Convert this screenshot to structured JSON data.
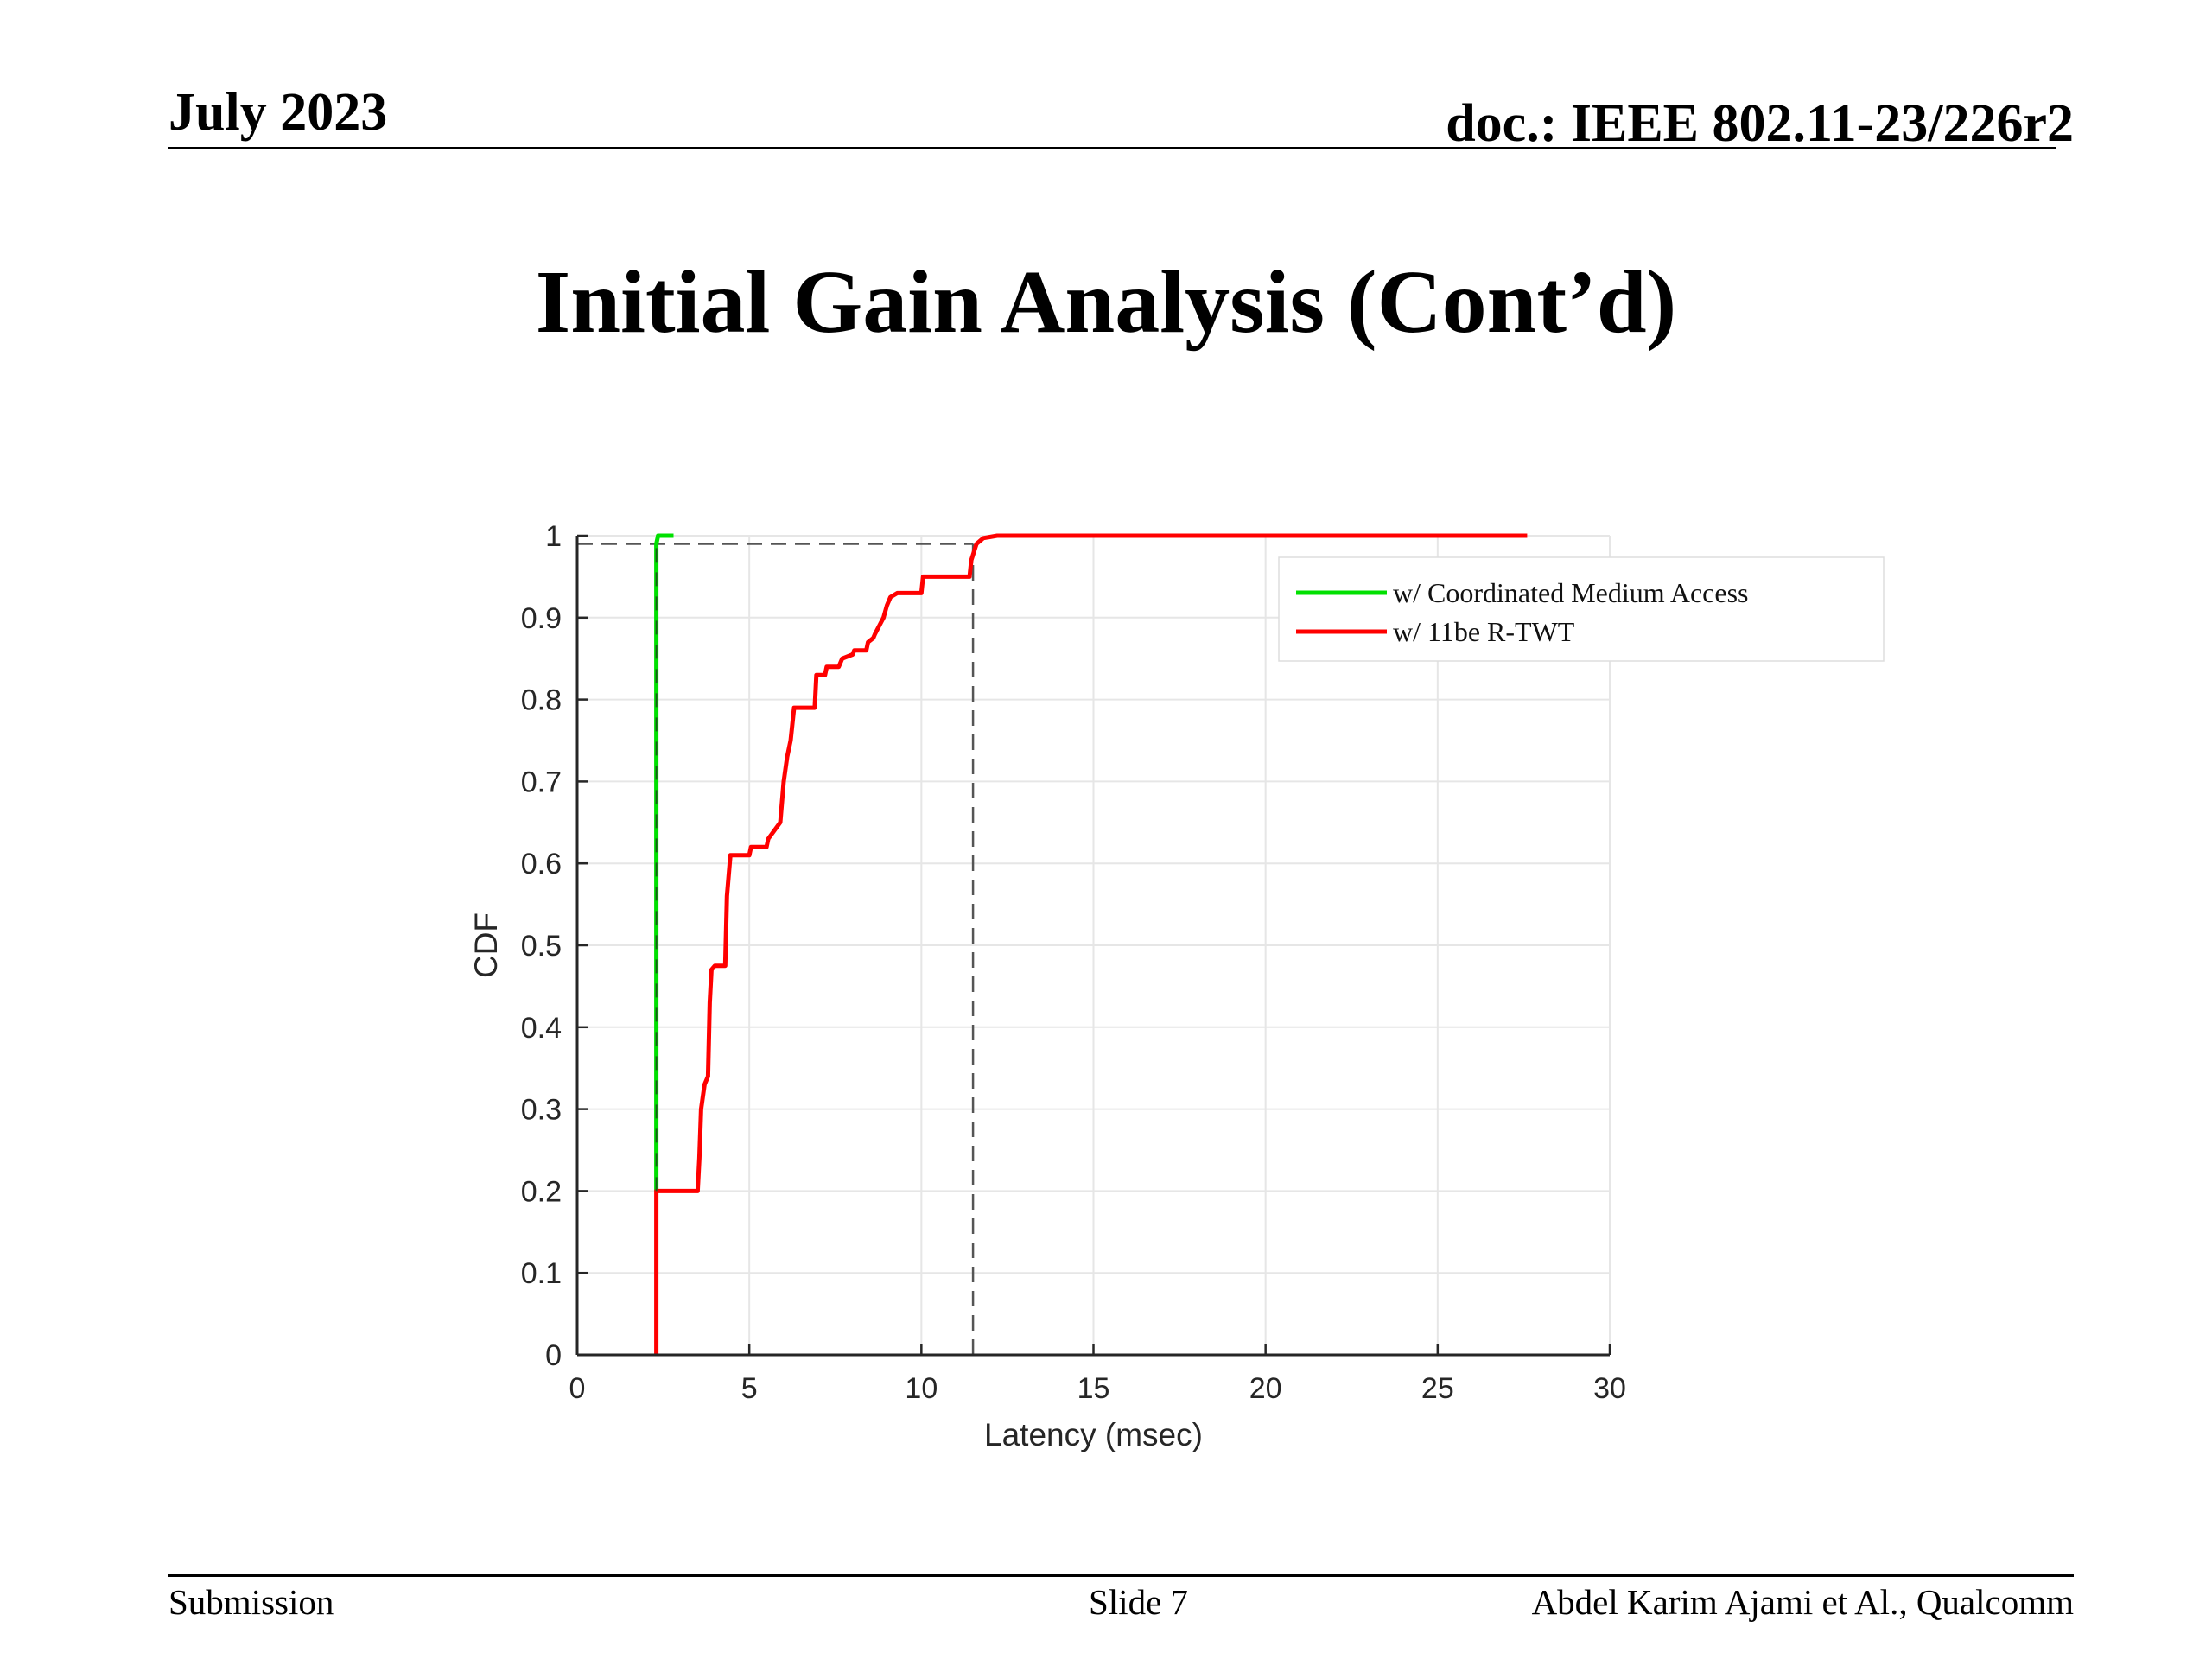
{
  "header": {
    "date": "July 2023",
    "doc": "doc.: IEEE 802.11-23/226r2"
  },
  "slide": {
    "title": "Initial Gain Analysis (Cont’d)"
  },
  "footer": {
    "left": "Submission",
    "center": "Slide 7",
    "right": "Abdel Karim Ajami et Al., Qualcomm"
  },
  "colors": {
    "coordinated": "#00e000",
    "rtwt": "#ff0000",
    "grid": "#e6e6e6",
    "axis": "#262626",
    "reference": "#555555"
  },
  "chart_data": {
    "type": "line",
    "title": "",
    "xlabel": "Latency (msec)",
    "ylabel": "CDF",
    "xlim": [
      0,
      30
    ],
    "ylim": [
      0,
      1
    ],
    "xticks": [
      0,
      5,
      10,
      15,
      20,
      25,
      30
    ],
    "yticks": [
      0,
      0.1,
      0.2,
      0.3,
      0.4,
      0.5,
      0.6,
      0.7,
      0.8,
      0.9,
      1
    ],
    "xtick_labels": [
      "0",
      "5",
      "10",
      "15",
      "20",
      "25",
      "30"
    ],
    "ytick_labels": [
      "0",
      "0.1",
      "0.2",
      "0.3",
      "0.4",
      "0.5",
      "0.6",
      "0.7",
      "0.8",
      "0.9",
      "1"
    ],
    "grid": true,
    "legend_position": "top-right",
    "series": [
      {
        "name": "w/ Coordinated Medium Access",
        "color": "#00e000",
        "x": [
          2.3,
          2.3,
          2.35,
          2.8
        ],
        "y": [
          0.2,
          0.99,
          1.0,
          1.0
        ]
      },
      {
        "name": "w/ 11be R-TWT",
        "color": "#ff0000",
        "x": [
          2.3,
          2.3,
          3.5,
          3.55,
          3.6,
          3.7,
          3.8,
          3.85,
          3.9,
          4.0,
          4.3,
          4.35,
          4.45,
          5.0,
          5.05,
          5.5,
          5.55,
          5.9,
          6.0,
          6.1,
          6.2,
          6.3,
          6.35,
          6.9,
          6.95,
          7.2,
          7.25,
          7.6,
          7.7,
          8.0,
          8.05,
          8.4,
          8.45,
          8.6,
          8.65,
          8.9,
          9.0,
          9.1,
          9.3,
          10.0,
          10.05,
          11.4,
          11.45,
          11.6,
          11.8,
          12.2,
          14.0,
          20.0,
          27.6
        ],
        "y": [
          0.0,
          0.2,
          0.2,
          0.24,
          0.3,
          0.33,
          0.34,
          0.43,
          0.47,
          0.475,
          0.475,
          0.56,
          0.61,
          0.61,
          0.62,
          0.62,
          0.63,
          0.65,
          0.7,
          0.73,
          0.75,
          0.79,
          0.79,
          0.79,
          0.83,
          0.83,
          0.84,
          0.84,
          0.85,
          0.855,
          0.86,
          0.86,
          0.87,
          0.875,
          0.88,
          0.9,
          0.915,
          0.925,
          0.93,
          0.93,
          0.95,
          0.95,
          0.97,
          0.99,
          0.997,
          1.0,
          1.0,
          1.0,
          1.0
        ]
      }
    ],
    "reference_lines": [
      {
        "type": "horizontal",
        "y": 0.99,
        "x_range": [
          0,
          11.5
        ]
      },
      {
        "type": "vertical",
        "x": 2.3,
        "y_range": [
          0,
          0.99
        ]
      },
      {
        "type": "vertical",
        "x": 11.5,
        "y_range": [
          0,
          0.99
        ]
      }
    ]
  }
}
